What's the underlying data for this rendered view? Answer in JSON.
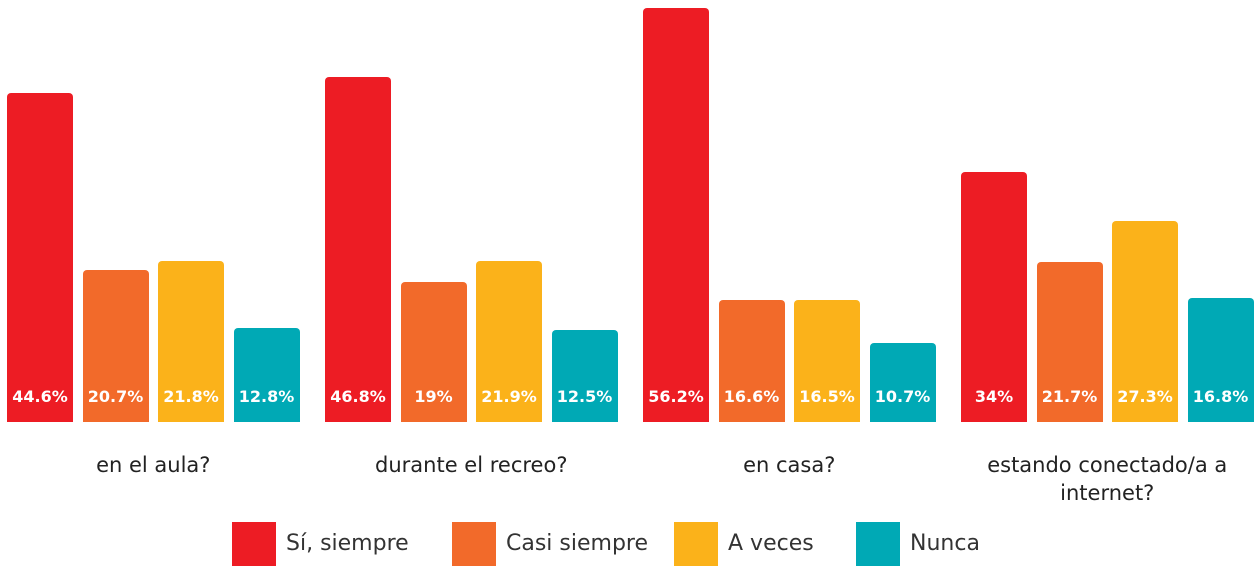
{
  "chart_data": {
    "type": "bar",
    "categories": [
      "en el aula?",
      "durante el recreo?",
      "en casa?",
      "estando conectado/a a internet?"
    ],
    "series": [
      {
        "name": "Sí, siempre",
        "color": "#ed1c24",
        "values": [
          44.6,
          46.8,
          56.2,
          34
        ],
        "value_labels": [
          "44.6%",
          "46.8%",
          "56.2%",
          "34%"
        ]
      },
      {
        "name": "Casi siempre",
        "color": "#f26a2a",
        "values": [
          20.7,
          19,
          16.6,
          21.7
        ],
        "value_labels": [
          "20.7%",
          "19%",
          "16.6%",
          "21.7%"
        ]
      },
      {
        "name": "A veces",
        "color": "#fbb21a",
        "values": [
          21.8,
          21.9,
          16.5,
          27.3
        ],
        "value_labels": [
          "21.8%",
          "21.9%",
          "16.5%",
          "27.3%"
        ]
      },
      {
        "name": "Nunca",
        "color": "#00a9b5",
        "values": [
          12.8,
          12.5,
          10.7,
          16.8
        ],
        "value_labels": [
          "12.8%",
          "12.5%",
          "10.7%",
          "16.8%"
        ]
      }
    ]
  }
}
